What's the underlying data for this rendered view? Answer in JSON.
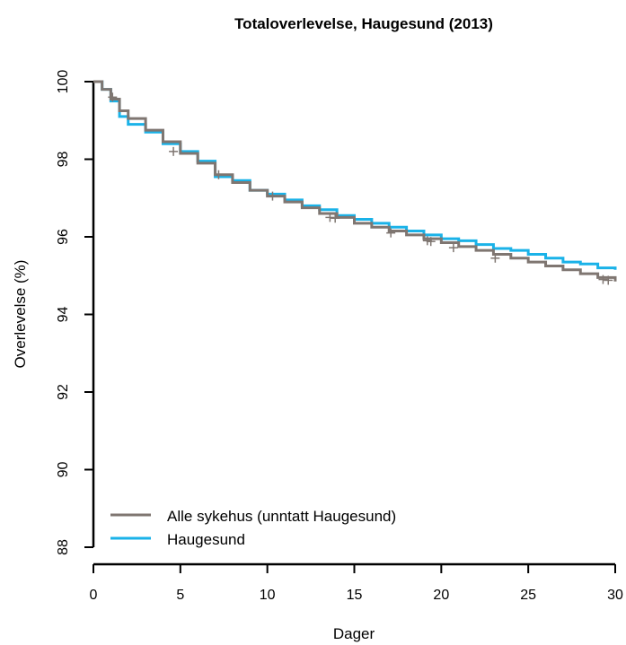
{
  "chart_data": {
    "type": "line",
    "title": "Totaloverlevelse, Haugesund (2013)",
    "xlabel": "Dager",
    "ylabel": "Overlevelse (%)",
    "xlim": [
      0,
      30
    ],
    "ylim": [
      88,
      100
    ],
    "xticks": [
      0,
      5,
      10,
      15,
      20,
      25,
      30
    ],
    "yticks": [
      88,
      90,
      92,
      94,
      96,
      98,
      100
    ],
    "grid": false,
    "legend_position": "bottom-left",
    "series": [
      {
        "name": "Alle sykehus (unntatt Haugesund)",
        "color": "#7f7671",
        "x": [
          0,
          0.5,
          1,
          1.5,
          2,
          3,
          4,
          5,
          6,
          7,
          8,
          9,
          10,
          11,
          12,
          13,
          14,
          15,
          16,
          17,
          18,
          19,
          20,
          21,
          22,
          23,
          24,
          25,
          26,
          27,
          28,
          29,
          30
        ],
        "y": [
          100,
          99.8,
          99.55,
          99.25,
          99.05,
          98.75,
          98.45,
          98.15,
          97.9,
          97.6,
          97.4,
          97.2,
          97.05,
          96.9,
          96.75,
          96.6,
          96.5,
          96.35,
          96.25,
          96.15,
          96.05,
          95.95,
          95.85,
          95.75,
          95.65,
          95.55,
          95.45,
          95.35,
          95.25,
          95.15,
          95.05,
          94.95,
          94.85
        ],
        "censor_x": [
          1.1,
          4.6,
          7.2,
          10.3,
          13.6,
          13.9,
          17.1,
          19.2,
          19.4,
          20.7,
          23.1,
          29.3,
          29.6
        ],
        "censor_y": [
          99.6,
          98.2,
          97.6,
          97.05,
          96.5,
          96.48,
          96.1,
          95.9,
          95.88,
          95.72,
          95.45,
          94.9,
          94.88
        ]
      },
      {
        "name": "Haugesund",
        "color": "#1ab2e8",
        "x": [
          0,
          0.5,
          1,
          1.5,
          2,
          3,
          4,
          5,
          6,
          7,
          8,
          9,
          10,
          11,
          12,
          13,
          14,
          15,
          16,
          17,
          18,
          19,
          20,
          21,
          22,
          23,
          24,
          25,
          26,
          27,
          28,
          29,
          30
        ],
        "y": [
          100,
          99.8,
          99.5,
          99.1,
          98.9,
          98.7,
          98.4,
          98.2,
          97.95,
          97.55,
          97.45,
          97.2,
          97.1,
          96.95,
          96.8,
          96.7,
          96.55,
          96.45,
          96.35,
          96.25,
          96.15,
          96.05,
          95.95,
          95.9,
          95.8,
          95.7,
          95.65,
          95.55,
          95.45,
          95.35,
          95.3,
          95.2,
          95.15
        ]
      }
    ]
  }
}
